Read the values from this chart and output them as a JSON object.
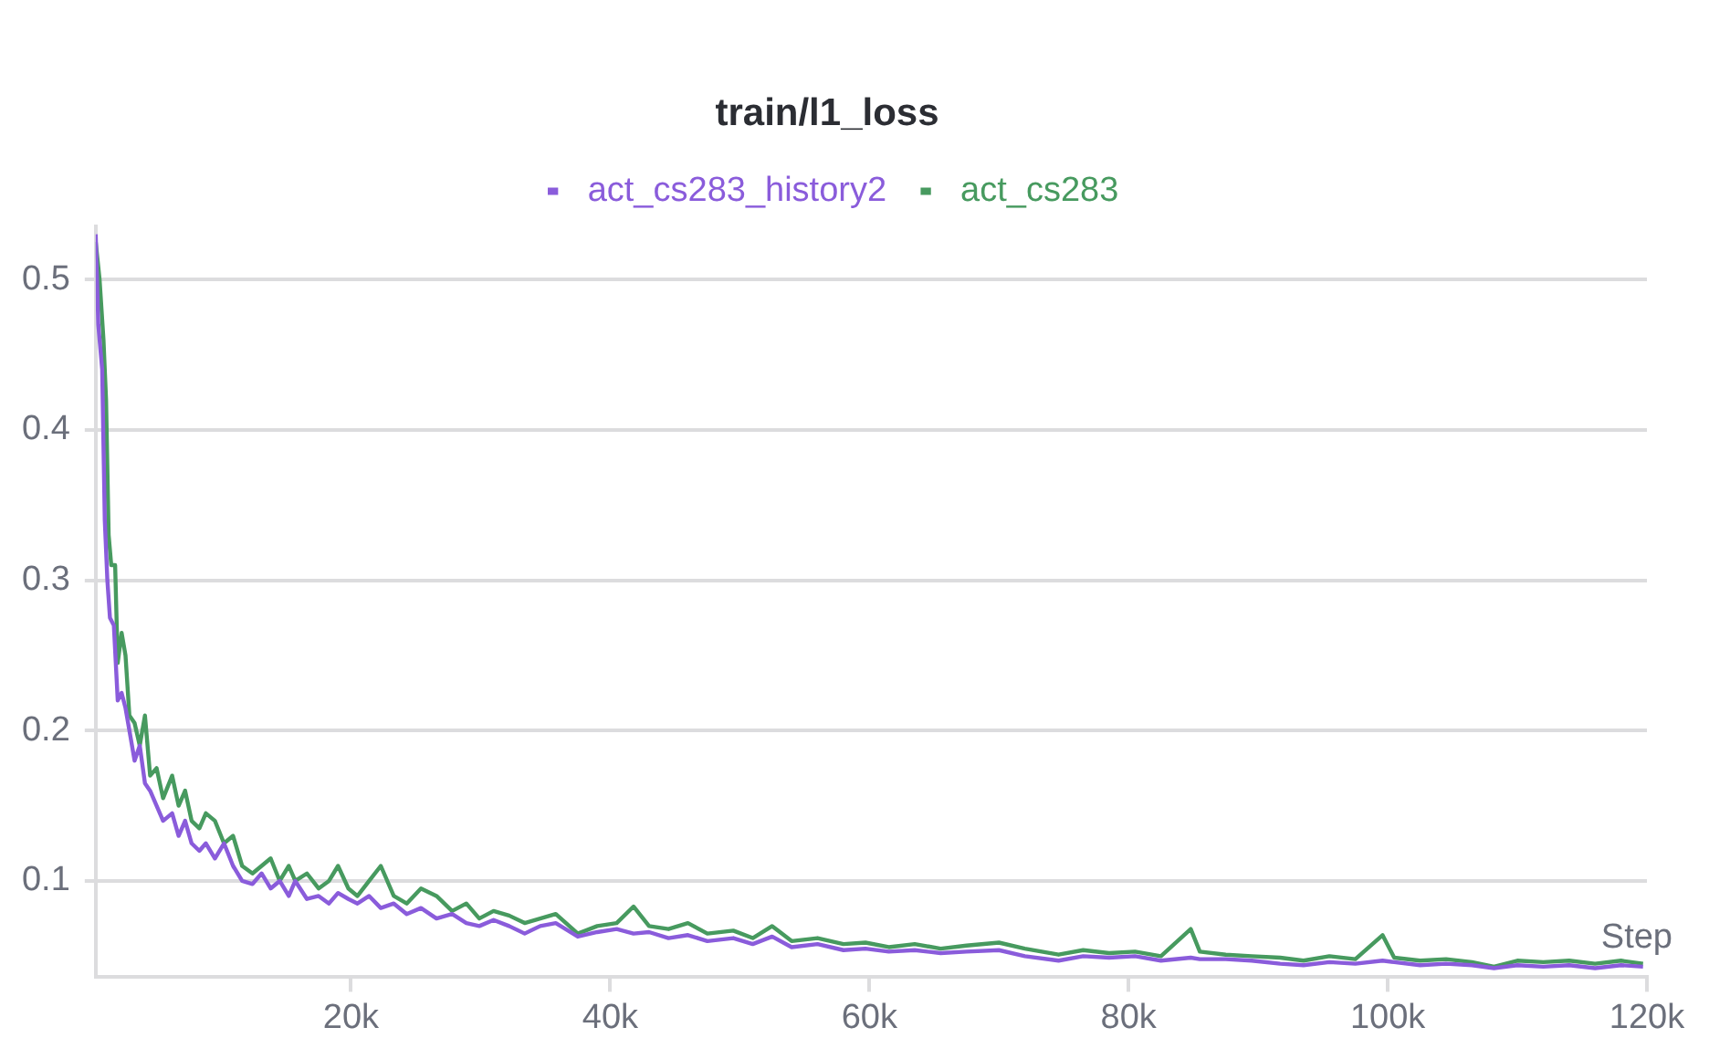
{
  "chart_data": {
    "type": "line",
    "title": "train/l1_loss",
    "xlabel": "Step",
    "legend": "top",
    "grid": "y",
    "marker": "none",
    "line_style": "solid",
    "xlim": [
      300,
      120000
    ],
    "ylim": [
      0.036,
      0.535
    ],
    "xticks": [
      {
        "value": 20000,
        "label": "20k"
      },
      {
        "value": 40000,
        "label": "40k"
      },
      {
        "value": 60000,
        "label": "60k"
      },
      {
        "value": 80000,
        "label": "80k"
      },
      {
        "value": 100000,
        "label": "100k"
      },
      {
        "value": 120000,
        "label": "120k"
      }
    ],
    "yticks": [
      0.1,
      0.2,
      0.3,
      0.4,
      0.5
    ],
    "series": [
      {
        "name": "act_cs283_history2",
        "color": "#8a5cdb",
        "x": [
          300,
          500,
          800,
          1000,
          1200,
          1400,
          1700,
          2000,
          2300,
          2600,
          2900,
          3300,
          3700,
          4100,
          4500,
          5000,
          5500,
          6200,
          6700,
          7200,
          7700,
          8300,
          8800,
          9500,
          10200,
          10900,
          11600,
          12400,
          13100,
          13800,
          14500,
          15200,
          15700,
          16600,
          17500,
          18300,
          19000,
          19800,
          20500,
          21400,
          22300,
          23300,
          24300,
          25400,
          26600,
          27800,
          28900,
          29900,
          31000,
          32200,
          33400,
          34600,
          35800,
          37500,
          39000,
          40500,
          41800,
          43000,
          44500,
          46000,
          47500,
          49500,
          51000,
          52500,
          54000,
          56000,
          58000,
          59700,
          61500,
          63500,
          65500,
          67500,
          70000,
          72000,
          74600,
          76500,
          78500,
          80500,
          82500,
          84800,
          85500,
          87500,
          89500,
          91700,
          93500,
          95500,
          97500,
          99600,
          100500,
          102500,
          104500,
          106500,
          108200,
          110000,
          112000,
          114000,
          116000,
          118000,
          119700
        ],
        "values": [
          0.53,
          0.47,
          0.44,
          0.34,
          0.3,
          0.275,
          0.27,
          0.22,
          0.225,
          0.215,
          0.2,
          0.18,
          0.19,
          0.165,
          0.16,
          0.15,
          0.14,
          0.145,
          0.13,
          0.14,
          0.125,
          0.12,
          0.125,
          0.115,
          0.125,
          0.11,
          0.1,
          0.098,
          0.105,
          0.095,
          0.1,
          0.09,
          0.1,
          0.088,
          0.09,
          0.085,
          0.092,
          0.088,
          0.085,
          0.09,
          0.082,
          0.085,
          0.078,
          0.082,
          0.075,
          0.078,
          0.072,
          0.07,
          0.074,
          0.07,
          0.065,
          0.07,
          0.072,
          0.063,
          0.066,
          0.068,
          0.065,
          0.066,
          0.062,
          0.064,
          0.06,
          0.062,
          0.058,
          0.063,
          0.056,
          0.058,
          0.054,
          0.055,
          0.053,
          0.054,
          0.052,
          0.053,
          0.054,
          0.05,
          0.047,
          0.05,
          0.049,
          0.05,
          0.047,
          0.049,
          0.048,
          0.048,
          0.047,
          0.045,
          0.044,
          0.046,
          0.045,
          0.047,
          0.046,
          0.044,
          0.045,
          0.044,
          0.042,
          0.044,
          0.043,
          0.044,
          0.042,
          0.044,
          0.043
        ]
      },
      {
        "name": "act_cs283",
        "color": "#479a5f",
        "x": [
          300,
          600,
          900,
          1100,
          1300,
          1500,
          1800,
          2000,
          2300,
          2600,
          2900,
          3300,
          3700,
          4100,
          4500,
          5000,
          5500,
          6200,
          6700,
          7200,
          7700,
          8300,
          8800,
          9500,
          10200,
          10900,
          11600,
          12400,
          13100,
          13800,
          14500,
          15200,
          15700,
          16600,
          17500,
          18300,
          19000,
          19800,
          20500,
          21400,
          22300,
          23300,
          24300,
          25400,
          26600,
          27800,
          28900,
          29900,
          31000,
          32200,
          33400,
          34600,
          35800,
          37500,
          39000,
          40500,
          41800,
          43000,
          44500,
          46000,
          47500,
          49500,
          51000,
          52500,
          54000,
          56000,
          58000,
          59700,
          61500,
          63500,
          65500,
          67500,
          70000,
          72000,
          74600,
          76500,
          78500,
          80500,
          82500,
          84800,
          85500,
          87500,
          89500,
          91700,
          93500,
          95500,
          97500,
          99600,
          100500,
          102500,
          104500,
          106500,
          108200,
          110000,
          112000,
          114000,
          116000,
          118000,
          119700
        ],
        "values": [
          0.525,
          0.5,
          0.46,
          0.42,
          0.33,
          0.31,
          0.31,
          0.245,
          0.265,
          0.25,
          0.21,
          0.205,
          0.19,
          0.21,
          0.17,
          0.175,
          0.155,
          0.17,
          0.15,
          0.16,
          0.14,
          0.135,
          0.145,
          0.14,
          0.125,
          0.13,
          0.11,
          0.105,
          0.11,
          0.115,
          0.1,
          0.11,
          0.1,
          0.105,
          0.095,
          0.1,
          0.11,
          0.095,
          0.09,
          0.1,
          0.11,
          0.09,
          0.085,
          0.095,
          0.09,
          0.08,
          0.085,
          0.075,
          0.08,
          0.077,
          0.072,
          0.075,
          0.078,
          0.065,
          0.07,
          0.072,
          0.083,
          0.07,
          0.068,
          0.072,
          0.065,
          0.067,
          0.062,
          0.07,
          0.06,
          0.062,
          0.058,
          0.059,
          0.056,
          0.058,
          0.055,
          0.057,
          0.059,
          0.055,
          0.051,
          0.054,
          0.052,
          0.053,
          0.05,
          0.068,
          0.053,
          0.051,
          0.05,
          0.049,
          0.047,
          0.05,
          0.048,
          0.064,
          0.049,
          0.047,
          0.048,
          0.046,
          0.043,
          0.047,
          0.046,
          0.047,
          0.045,
          0.047,
          0.045
        ]
      }
    ]
  }
}
